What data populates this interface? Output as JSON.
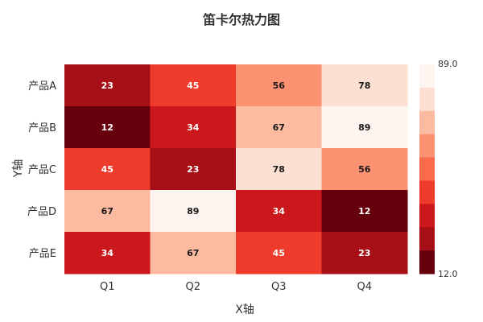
{
  "chart_data": {
    "type": "heatmap",
    "title": "笛卡尔热力图",
    "xlabel": "X轴",
    "ylabel": "Y轴",
    "x_categories": [
      "Q1",
      "Q2",
      "Q3",
      "Q4"
    ],
    "y_categories": [
      "产品A",
      "产品B",
      "产品C",
      "产品D",
      "产品E"
    ],
    "values": [
      [
        23,
        45,
        56,
        78
      ],
      [
        12,
        34,
        67,
        89
      ],
      [
        45,
        23,
        78,
        56
      ],
      [
        67,
        89,
        34,
        12
      ],
      [
        34,
        67,
        45,
        23
      ]
    ],
    "range": [
      12,
      89
    ],
    "legend": {
      "max_label": "89.0",
      "min_label": "12.0",
      "placement": "right"
    },
    "colormap": [
      "#67000d",
      "#a50f15",
      "#cb181d",
      "#ef3b2c",
      "#fb6a4a",
      "#fc9272",
      "#fcbba1",
      "#fee0d2",
      "#fff5f0"
    ]
  }
}
